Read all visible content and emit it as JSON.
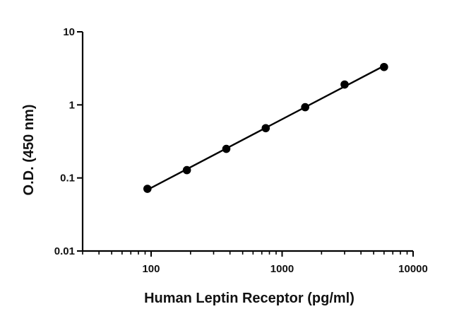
{
  "chart_data": {
    "type": "scatter",
    "xlabel": "Human Leptin Receptor (pg/ml)",
    "ylabel": "O.D. (450 nm)",
    "xscale": "log",
    "yscale": "log",
    "xlim": [
      30,
      10000
    ],
    "ylim": [
      0.01,
      10
    ],
    "x_ticks": [
      100,
      1000,
      10000
    ],
    "x_tick_labels": [
      "100",
      "1000",
      "10000"
    ],
    "y_ticks": [
      0.01,
      0.1,
      1,
      10
    ],
    "y_tick_labels": [
      "0.01",
      "0.1",
      "1",
      "10"
    ],
    "grid": false,
    "legend": "none",
    "series": [
      {
        "x": [
          93.75,
          187.5,
          375,
          750,
          1500,
          3000,
          6000
        ],
        "y": [
          0.071,
          0.128,
          0.25,
          0.48,
          0.93,
          1.9,
          3.3
        ],
        "marker": "circle",
        "line": "fit",
        "color": "#000000"
      }
    ]
  }
}
